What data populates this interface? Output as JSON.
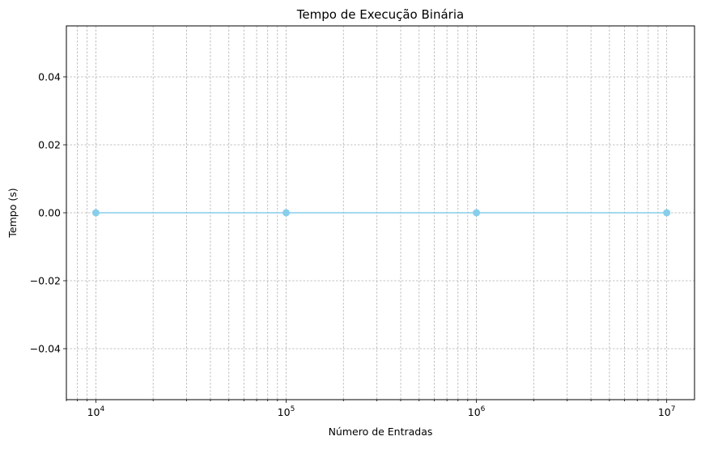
{
  "chart_data": {
    "type": "line",
    "title": "Tempo de Execução Binária",
    "xlabel": "Número de Entradas",
    "ylabel": "Tempo (s)",
    "x_scale": "log",
    "xlim": [
      7000,
      14000000
    ],
    "ylim": [
      -0.055,
      0.055
    ],
    "x_ticks": [
      {
        "base": "10",
        "exp": "4",
        "value": 10000
      },
      {
        "base": "10",
        "exp": "5",
        "value": 100000
      },
      {
        "base": "10",
        "exp": "6",
        "value": 1000000
      },
      {
        "base": "10",
        "exp": "7",
        "value": 10000000
      }
    ],
    "y_ticks": [
      {
        "label": "0.04",
        "value": 0.04
      },
      {
        "label": "0.02",
        "value": 0.02
      },
      {
        "label": "0.00",
        "value": 0.0
      },
      {
        "label": "−0.02",
        "value": -0.02
      },
      {
        "label": "−0.04",
        "value": -0.04
      }
    ],
    "grid": true,
    "grid_minor": true,
    "series": [
      {
        "name": "",
        "color": "#87ceeb",
        "marker": "circle",
        "x": [
          10000,
          100000,
          1000000,
          10000000
        ],
        "y": [
          0.0,
          0.0,
          0.0,
          0.0
        ]
      }
    ]
  }
}
